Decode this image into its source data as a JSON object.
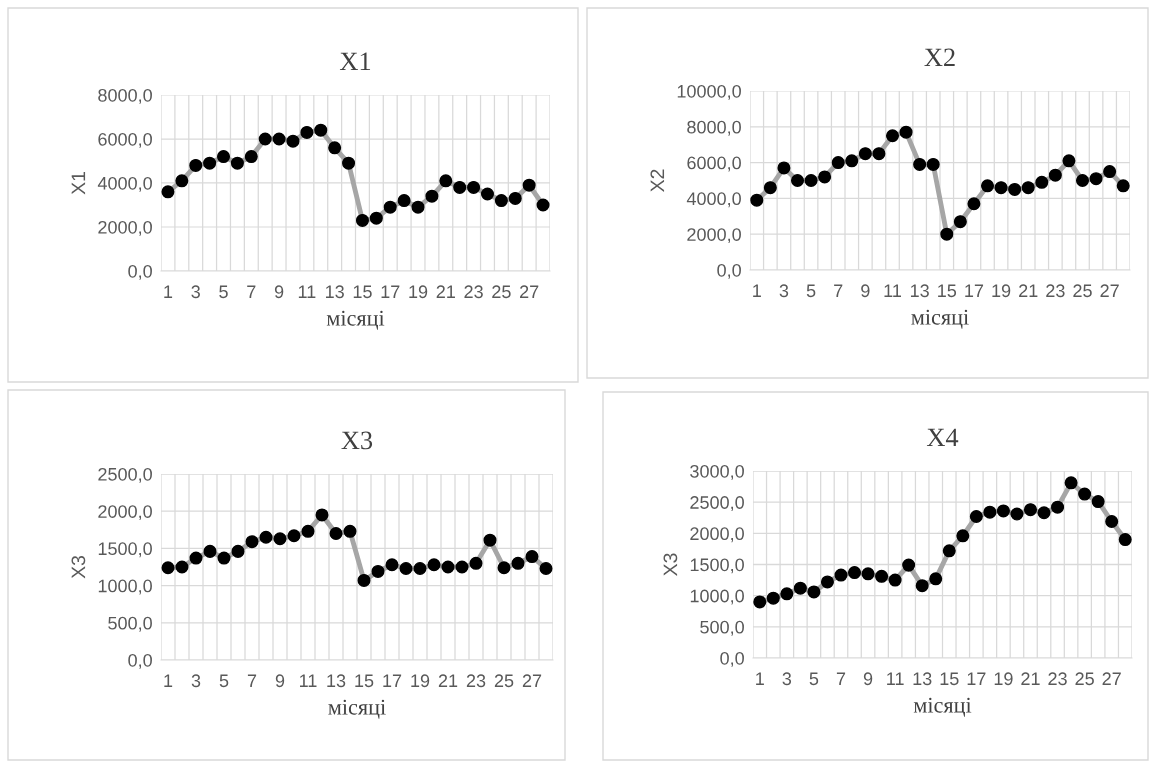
{
  "chart_data": [
    {
      "type": "line",
      "title": "X1",
      "xlabel": "місяці",
      "ylabel": "X1",
      "categories": [
        "1",
        null,
        "3",
        null,
        "5",
        null,
        "7",
        null,
        "9",
        null,
        "11",
        null,
        "13",
        null,
        "15",
        null,
        "17",
        null,
        "19",
        null,
        "21",
        null,
        "23",
        null,
        "25",
        null,
        "27",
        null
      ],
      "series": [
        {
          "color": "#a6a6a6",
          "colors": [
            "#000000",
            "#000000",
            "#000000",
            "#000000",
            "#000000",
            "#000000",
            "#000000",
            "#000000",
            "#000000",
            "#000000",
            "#000000",
            "#000000",
            "#000000",
            "#000000",
            "#000000",
            "#000000",
            "#000000",
            "#000000",
            "#000000",
            "#000000",
            "#000000",
            "#000000",
            "#000000",
            "#000000",
            "#000000",
            "#000000",
            "#000000",
            "#000000"
          ],
          "values": [
            3600,
            4100,
            4800,
            4900,
            5200,
            4900,
            5200,
            6000,
            6000,
            5900,
            6300,
            6400,
            5600,
            4900,
            2300,
            2400,
            2900,
            3200,
            2900,
            3400,
            4100,
            3800,
            3800,
            3500,
            3200,
            3300,
            3900,
            3000
          ]
        }
      ],
      "ylim": [
        0,
        8000
      ],
      "yticks": [
        {
          "value": 0,
          "label": "0,0"
        },
        {
          "value": 2000,
          "label": "2000,0"
        },
        {
          "value": 4000,
          "label": "4000,0"
        },
        {
          "value": 6000,
          "label": "6000,0"
        },
        {
          "value": 8000,
          "label": "8000,0"
        }
      ],
      "grid": true,
      "marker": "circle",
      "line_style": "solid"
    },
    {
      "type": "line",
      "title": "X2",
      "xlabel": "місяці",
      "ylabel": "X2",
      "categories": [
        "1",
        null,
        "3",
        null,
        "5",
        null,
        "7",
        null,
        "9",
        null,
        "11",
        null,
        "13",
        null,
        "15",
        null,
        "17",
        null,
        "19",
        null,
        "21",
        null,
        "23",
        null,
        "25",
        null,
        "27",
        null
      ],
      "series": [
        {
          "color": "#a6a6a6",
          "colors": [
            "#000000",
            "#000000",
            "#000000",
            "#000000",
            "#000000",
            "#000000",
            "#000000",
            "#000000",
            "#000000",
            "#000000",
            "#000000",
            "#000000",
            "#000000",
            "#000000",
            "#000000",
            "#000000",
            "#000000",
            "#000000",
            "#000000",
            "#000000",
            "#000000",
            "#000000",
            "#000000",
            "#000000",
            "#000000",
            "#000000",
            "#000000",
            "#000000"
          ],
          "values": [
            3900,
            4600,
            5700,
            5000,
            5000,
            5200,
            6000,
            6100,
            6500,
            6500,
            7500,
            7700,
            5900,
            5900,
            2000,
            2700,
            3700,
            4700,
            4600,
            4500,
            4600,
            4900,
            5300,
            6100,
            5000,
            5100,
            5500,
            4700
          ]
        }
      ],
      "ylim": [
        0,
        10000
      ],
      "yticks": [
        {
          "value": 0,
          "label": "0,0"
        },
        {
          "value": 2000,
          "label": "2000,0"
        },
        {
          "value": 4000,
          "label": "4000,0"
        },
        {
          "value": 6000,
          "label": "6000,0"
        },
        {
          "value": 8000,
          "label": "8000,0"
        },
        {
          "value": 10000,
          "label": "10000,0"
        }
      ],
      "grid": true,
      "marker": "circle",
      "line_style": "solid"
    },
    {
      "type": "line",
      "title": "X3",
      "xlabel": "місяці",
      "ylabel": "X3",
      "categories": [
        "1",
        null,
        "3",
        null,
        "5",
        null,
        "7",
        null,
        "9",
        null,
        "11",
        null,
        "13",
        null,
        "15",
        null,
        "17",
        null,
        "19",
        null,
        "21",
        null,
        "23",
        null,
        "25",
        null,
        "27",
        null
      ],
      "series": [
        {
          "color": "#a6a6a6",
          "colors": [
            "#000000",
            "#000000",
            "#000000",
            "#000000",
            "#000000",
            "#000000",
            "#000000",
            "#000000",
            "#000000",
            "#000000",
            "#000000",
            "#000000",
            "#000000",
            "#000000",
            "#000000",
            "#000000",
            "#000000",
            "#000000",
            "#000000",
            "#000000",
            "#000000",
            "#000000",
            "#000000",
            "#000000",
            "#000000",
            "#000000",
            "#000000",
            "#000000"
          ],
          "values": [
            1240,
            1250,
            1370,
            1460,
            1370,
            1460,
            1590,
            1650,
            1630,
            1670,
            1730,
            1950,
            1700,
            1730,
            1070,
            1190,
            1280,
            1230,
            1230,
            1280,
            1250,
            1250,
            1300,
            1610,
            1240,
            1300,
            1390,
            1230
          ]
        }
      ],
      "ylim": [
        0,
        2500
      ],
      "yticks": [
        {
          "value": 0,
          "label": "0,0"
        },
        {
          "value": 500,
          "label": "500,0"
        },
        {
          "value": 1000,
          "label": "1000,0"
        },
        {
          "value": 1500,
          "label": "1500,0"
        },
        {
          "value": 2000,
          "label": "2000,0"
        },
        {
          "value": 2500,
          "label": "2500,0"
        }
      ],
      "grid": true,
      "marker": "circle",
      "line_style": "solid"
    },
    {
      "type": "line",
      "title": "X4",
      "xlabel": "місяці",
      "ylabel": "X3",
      "categories": [
        "1",
        null,
        "3",
        null,
        "5",
        null,
        "7",
        null,
        "9",
        null,
        "11",
        null,
        "13",
        null,
        "15",
        null,
        "17",
        null,
        "19",
        null,
        "21",
        null,
        "23",
        null,
        "25",
        null,
        "27",
        null
      ],
      "series": [
        {
          "color": "#a6a6a6",
          "colors": [
            "#000000",
            "#000000",
            "#000000",
            "#000000",
            "#000000",
            "#000000",
            "#000000",
            "#000000",
            "#000000",
            "#000000",
            "#000000",
            "#000000",
            "#000000",
            "#000000",
            "#000000",
            "#000000",
            "#000000",
            "#000000",
            "#000000",
            "#000000",
            "#000000",
            "#000000",
            "#000000",
            "#000000",
            "#000000",
            "#000000",
            "#000000",
            "#000000"
          ],
          "values": [
            900,
            960,
            1030,
            1120,
            1060,
            1220,
            1330,
            1370,
            1350,
            1310,
            1250,
            1490,
            1160,
            1270,
            1720,
            1960,
            2270,
            2340,
            2360,
            2310,
            2380,
            2330,
            2420,
            2810,
            2630,
            2510,
            2190,
            1900
          ]
        }
      ],
      "ylim": [
        0,
        3000
      ],
      "yticks": [
        {
          "value": 0,
          "label": "0,0"
        },
        {
          "value": 500,
          "label": "500,0"
        },
        {
          "value": 1000,
          "label": "1000,0"
        },
        {
          "value": 1500,
          "label": "1500,0"
        },
        {
          "value": 2000,
          "label": "2000,0"
        },
        {
          "value": 2500,
          "label": "2500,0"
        },
        {
          "value": 3000,
          "label": "3000,0"
        }
      ],
      "grid": true,
      "marker": "circle",
      "line_style": "solid"
    }
  ]
}
